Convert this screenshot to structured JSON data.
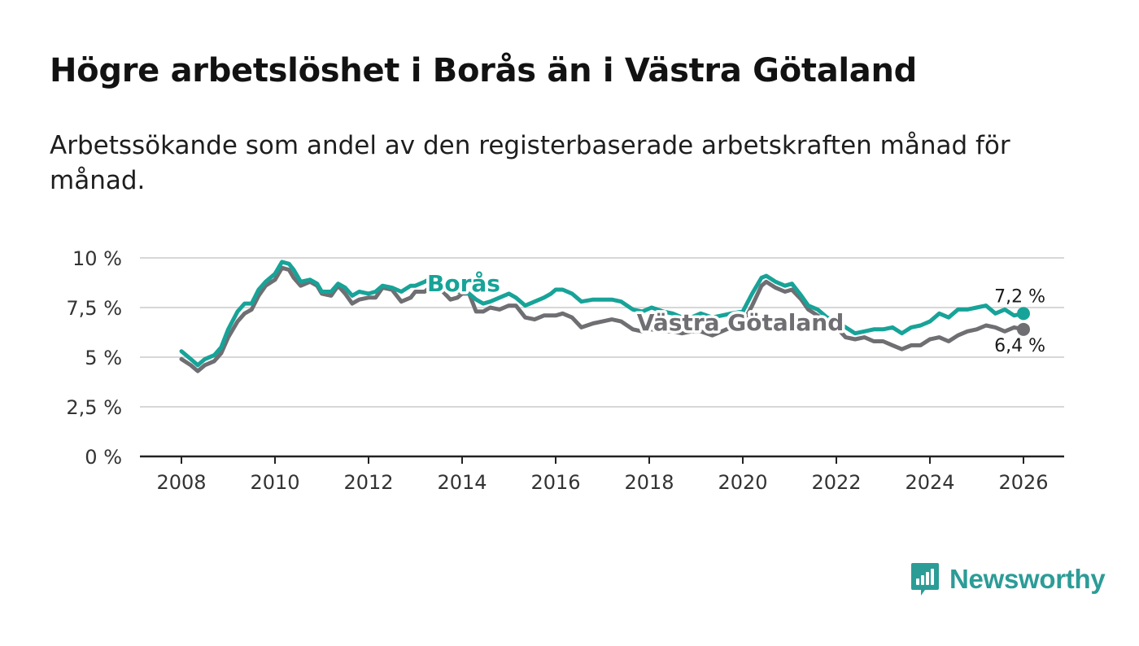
{
  "title": "Högre arbetslöshet i Borås än i Västra Götaland",
  "subtitle": "Arbetssökande som andel av den registerbaserade arbetskraften månad för månad.",
  "brand": {
    "name": "Newsworthy",
    "icon": "newsworthy-logo-icon"
  },
  "colors": {
    "boras": "#17a398",
    "vastra": "#6f6f73",
    "grid": "#d7d7d7",
    "axis": "#222222"
  },
  "chart_data": {
    "type": "line",
    "title": "Högre arbetslöshet i Borås än i Västra Götaland",
    "xlabel": "",
    "ylabel": "",
    "xlim": [
      2007.5,
      2026.9
    ],
    "ylim": [
      0,
      10
    ],
    "x_ticks": [
      2008,
      2010,
      2012,
      2014,
      2016,
      2018,
      2020,
      2022,
      2024,
      2026
    ],
    "x_tick_labels": [
      "2008",
      "2010",
      "2012",
      "2014",
      "2016",
      "2018",
      "2020",
      "2022",
      "2024",
      "2026"
    ],
    "y_ticks": [
      0,
      2.5,
      5,
      7.5,
      10
    ],
    "y_tick_labels": [
      "0 %",
      "2,5 %",
      "5 %",
      "7,5 %",
      "10 %"
    ],
    "grid": "horizontal",
    "legend": "inline labels",
    "series": [
      {
        "name": "Västra Götaland",
        "label": "Västra Götaland",
        "end_label": "6,4 %",
        "points": [
          [
            2008.0,
            4.9
          ],
          [
            2008.2,
            4.6
          ],
          [
            2008.35,
            4.3
          ],
          [
            2008.5,
            4.6
          ],
          [
            2008.7,
            4.8
          ],
          [
            2008.85,
            5.2
          ],
          [
            2009.0,
            6.0
          ],
          [
            2009.2,
            6.8
          ],
          [
            2009.35,
            7.2
          ],
          [
            2009.5,
            7.4
          ],
          [
            2009.65,
            8.1
          ],
          [
            2009.8,
            8.6
          ],
          [
            2010.0,
            8.9
          ],
          [
            2010.15,
            9.5
          ],
          [
            2010.3,
            9.4
          ],
          [
            2010.4,
            9.0
          ],
          [
            2010.55,
            8.6
          ],
          [
            2010.75,
            8.8
          ],
          [
            2010.9,
            8.6
          ],
          [
            2011.0,
            8.2
          ],
          [
            2011.2,
            8.1
          ],
          [
            2011.35,
            8.6
          ],
          [
            2011.5,
            8.2
          ],
          [
            2011.65,
            7.7
          ],
          [
            2011.8,
            7.9
          ],
          [
            2012.0,
            8.0
          ],
          [
            2012.15,
            8.0
          ],
          [
            2012.3,
            8.5
          ],
          [
            2012.5,
            8.4
          ],
          [
            2012.7,
            7.8
          ],
          [
            2012.9,
            8.0
          ],
          [
            2013.0,
            8.3
          ],
          [
            2013.2,
            8.3
          ],
          [
            2013.35,
            8.6
          ],
          [
            2013.55,
            8.4
          ],
          [
            2013.75,
            7.9
          ],
          [
            2013.9,
            8.0
          ],
          [
            2014.0,
            8.2
          ],
          [
            2014.15,
            8.2
          ],
          [
            2014.3,
            7.3
          ],
          [
            2014.45,
            7.3
          ],
          [
            2014.6,
            7.5
          ],
          [
            2014.8,
            7.4
          ],
          [
            2015.0,
            7.6
          ],
          [
            2015.15,
            7.6
          ],
          [
            2015.35,
            7.0
          ],
          [
            2015.55,
            6.9
          ],
          [
            2015.75,
            7.1
          ],
          [
            2015.9,
            7.1
          ],
          [
            2016.0,
            7.1
          ],
          [
            2016.15,
            7.2
          ],
          [
            2016.35,
            7.0
          ],
          [
            2016.55,
            6.5
          ],
          [
            2016.8,
            6.7
          ],
          [
            2017.0,
            6.8
          ],
          [
            2017.2,
            6.9
          ],
          [
            2017.4,
            6.8
          ],
          [
            2017.65,
            6.4
          ],
          [
            2017.85,
            6.3
          ],
          [
            2018.05,
            6.4
          ],
          [
            2018.3,
            6.3
          ],
          [
            2018.5,
            6.3
          ],
          [
            2018.7,
            6.2
          ],
          [
            2018.9,
            6.3
          ],
          [
            2019.1,
            6.3
          ],
          [
            2019.35,
            6.1
          ],
          [
            2019.55,
            6.3
          ],
          [
            2019.75,
            6.5
          ],
          [
            2020.0,
            6.7
          ],
          [
            2020.2,
            7.6
          ],
          [
            2020.4,
            8.6
          ],
          [
            2020.5,
            8.8
          ],
          [
            2020.7,
            8.5
          ],
          [
            2020.9,
            8.3
          ],
          [
            2021.05,
            8.4
          ],
          [
            2021.25,
            7.9
          ],
          [
            2021.4,
            7.4
          ],
          [
            2021.6,
            7.1
          ],
          [
            2021.8,
            6.8
          ],
          [
            2022.0,
            6.5
          ],
          [
            2022.2,
            6.0
          ],
          [
            2022.4,
            5.9
          ],
          [
            2022.6,
            6.0
          ],
          [
            2022.8,
            5.8
          ],
          [
            2023.0,
            5.8
          ],
          [
            2023.2,
            5.6
          ],
          [
            2023.4,
            5.4
          ],
          [
            2023.6,
            5.6
          ],
          [
            2023.8,
            5.6
          ],
          [
            2024.0,
            5.9
          ],
          [
            2024.2,
            6.0
          ],
          [
            2024.4,
            5.8
          ],
          [
            2024.6,
            6.1
          ],
          [
            2024.8,
            6.3
          ],
          [
            2025.0,
            6.4
          ],
          [
            2025.2,
            6.6
          ],
          [
            2025.4,
            6.5
          ],
          [
            2025.6,
            6.3
          ],
          [
            2025.8,
            6.5
          ],
          [
            2026.0,
            6.4
          ]
        ]
      },
      {
        "name": "Borås",
        "label": "Borås",
        "end_label": "7,2 %",
        "points": [
          [
            2008.0,
            5.3
          ],
          [
            2008.2,
            4.9
          ],
          [
            2008.35,
            4.6
          ],
          [
            2008.5,
            4.9
          ],
          [
            2008.7,
            5.1
          ],
          [
            2008.85,
            5.5
          ],
          [
            2009.0,
            6.4
          ],
          [
            2009.2,
            7.3
          ],
          [
            2009.35,
            7.7
          ],
          [
            2009.5,
            7.7
          ],
          [
            2009.65,
            8.4
          ],
          [
            2009.8,
            8.8
          ],
          [
            2010.0,
            9.2
          ],
          [
            2010.15,
            9.8
          ],
          [
            2010.3,
            9.7
          ],
          [
            2010.4,
            9.4
          ],
          [
            2010.55,
            8.8
          ],
          [
            2010.75,
            8.9
          ],
          [
            2010.9,
            8.7
          ],
          [
            2011.0,
            8.3
          ],
          [
            2011.2,
            8.3
          ],
          [
            2011.35,
            8.7
          ],
          [
            2011.5,
            8.5
          ],
          [
            2011.65,
            8.1
          ],
          [
            2011.8,
            8.3
          ],
          [
            2012.0,
            8.2
          ],
          [
            2012.15,
            8.3
          ],
          [
            2012.3,
            8.6
          ],
          [
            2012.5,
            8.5
          ],
          [
            2012.7,
            8.3
          ],
          [
            2012.9,
            8.6
          ],
          [
            2013.0,
            8.6
          ],
          [
            2013.2,
            8.8
          ],
          [
            2013.35,
            9.0
          ],
          [
            2013.55,
            8.6
          ],
          [
            2013.75,
            8.3
          ],
          [
            2013.9,
            8.3
          ],
          [
            2014.0,
            8.3
          ],
          [
            2014.15,
            8.2
          ],
          [
            2014.3,
            7.9
          ],
          [
            2014.45,
            7.7
          ],
          [
            2014.6,
            7.8
          ],
          [
            2014.8,
            8.0
          ],
          [
            2015.0,
            8.2
          ],
          [
            2015.15,
            8.0
          ],
          [
            2015.35,
            7.6
          ],
          [
            2015.55,
            7.8
          ],
          [
            2015.75,
            8.0
          ],
          [
            2015.9,
            8.2
          ],
          [
            2016.0,
            8.4
          ],
          [
            2016.15,
            8.4
          ],
          [
            2016.35,
            8.2
          ],
          [
            2016.55,
            7.8
          ],
          [
            2016.8,
            7.9
          ],
          [
            2017.0,
            7.9
          ],
          [
            2017.2,
            7.9
          ],
          [
            2017.4,
            7.8
          ],
          [
            2017.65,
            7.4
          ],
          [
            2017.85,
            7.3
          ],
          [
            2018.05,
            7.5
          ],
          [
            2018.3,
            7.3
          ],
          [
            2018.5,
            7.2
          ],
          [
            2018.7,
            7.0
          ],
          [
            2018.9,
            7.0
          ],
          [
            2019.1,
            7.2
          ],
          [
            2019.35,
            7.0
          ],
          [
            2019.55,
            7.1
          ],
          [
            2019.75,
            7.2
          ],
          [
            2020.0,
            7.3
          ],
          [
            2020.2,
            8.2
          ],
          [
            2020.4,
            9.0
          ],
          [
            2020.5,
            9.1
          ],
          [
            2020.7,
            8.8
          ],
          [
            2020.9,
            8.6
          ],
          [
            2021.05,
            8.7
          ],
          [
            2021.25,
            8.1
          ],
          [
            2021.4,
            7.6
          ],
          [
            2021.6,
            7.4
          ],
          [
            2021.8,
            7.0
          ],
          [
            2022.0,
            6.8
          ],
          [
            2022.2,
            6.5
          ],
          [
            2022.4,
            6.2
          ],
          [
            2022.6,
            6.3
          ],
          [
            2022.8,
            6.4
          ],
          [
            2023.0,
            6.4
          ],
          [
            2023.2,
            6.5
          ],
          [
            2023.4,
            6.2
          ],
          [
            2023.6,
            6.5
          ],
          [
            2023.8,
            6.6
          ],
          [
            2024.0,
            6.8
          ],
          [
            2024.2,
            7.2
          ],
          [
            2024.4,
            7.0
          ],
          [
            2024.6,
            7.4
          ],
          [
            2024.8,
            7.4
          ],
          [
            2025.0,
            7.5
          ],
          [
            2025.2,
            7.6
          ],
          [
            2025.4,
            7.2
          ],
          [
            2025.6,
            7.4
          ],
          [
            2025.8,
            7.1
          ],
          [
            2026.0,
            7.2
          ]
        ]
      }
    ]
  }
}
